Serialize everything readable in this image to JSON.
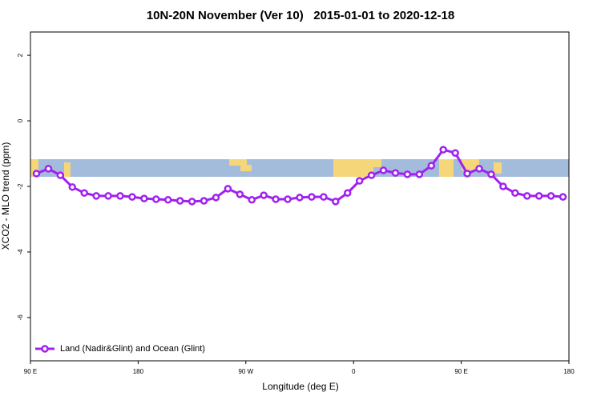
{
  "chart_data": {
    "type": "line",
    "title": "10N-20N November (Ver 10)   2015-01-01 to 2020-12-18",
    "xlabel": "Longitude (deg E)",
    "ylabel": "XCO2 - MLO trend (ppm)",
    "xlim": [
      90,
      540
    ],
    "xticks": [
      {
        "value": 90,
        "label": "90 E"
      },
      180,
      {
        "value": 270,
        "label": "90 W"
      },
      {
        "value": 360,
        "label": "0"
      },
      {
        "value": 450,
        "label": "90 E"
      },
      {
        "value": 540,
        "label": "180"
      }
    ],
    "ylim": [
      -7.32,
      2.71
    ],
    "yticks": [
      2,
      0,
      -2,
      -4,
      -6
    ],
    "legend": "bottom-left",
    "x": [
      95,
      105,
      115,
      125,
      135,
      145,
      155,
      165,
      175,
      185,
      195,
      205,
      215,
      225,
      235,
      245,
      255,
      265,
      275,
      285,
      295,
      305,
      315,
      325,
      335,
      345,
      355,
      365,
      375,
      385,
      395,
      405,
      415,
      425,
      435,
      445,
      455,
      465,
      475,
      485,
      495,
      505,
      515,
      525,
      535
    ],
    "series": [
      {
        "name": "Land (Nadir&Glint) and Ocean (Glint)",
        "color": "#a020f0",
        "values": [
          -1.61,
          -1.46,
          -1.66,
          -2.02,
          -2.2,
          -2.29,
          -2.29,
          -2.29,
          -2.32,
          -2.37,
          -2.39,
          -2.41,
          -2.44,
          -2.46,
          -2.44,
          -2.34,
          -2.07,
          -2.24,
          -2.41,
          -2.27,
          -2.39,
          -2.39,
          -2.34,
          -2.32,
          -2.32,
          -2.46,
          -2.2,
          -1.83,
          -1.66,
          -1.51,
          -1.59,
          -1.63,
          -1.63,
          -1.37,
          -0.88,
          -0.98,
          -1.61,
          -1.46,
          -1.63,
          -2.0,
          -2.2,
          -2.29,
          -2.29,
          -2.29,
          -2.32
        ]
      }
    ]
  }
}
